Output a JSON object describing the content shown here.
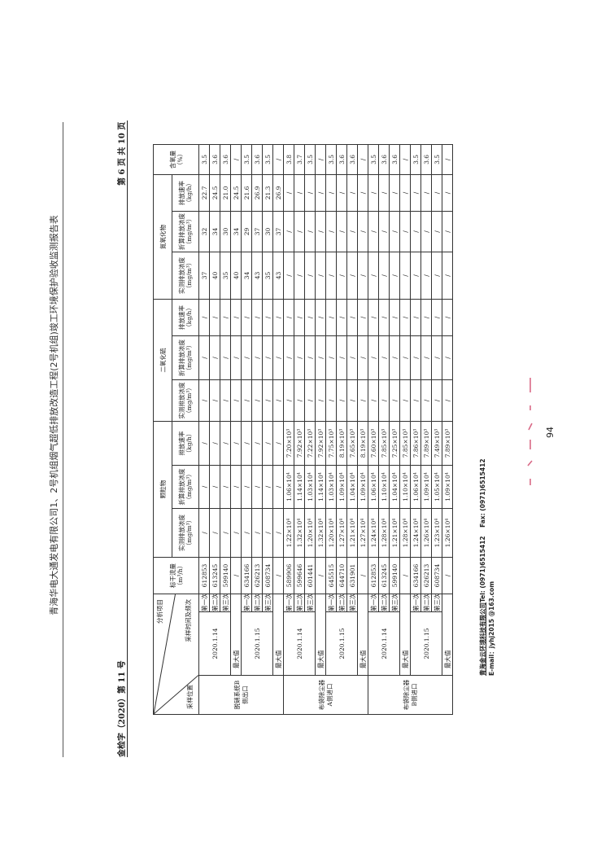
{
  "header": {
    "title": "青海华电大通发电有限公司1、2号机组烟气超低排放改造工程(2号机组)竣工环境保护验收监测报告表",
    "doc_number": "金检字（2020）第 11 号",
    "page_info": "第 6 页 共 10 页"
  },
  "table": {
    "diagonal": {
      "top": "分析项目",
      "mid": "采样时间及频次",
      "bottom": "采样位置"
    },
    "flow_header": "标干流量（m³/h）",
    "o2_header": "含氧量（%）",
    "groups": [
      "颗粒物",
      "二氧化硫",
      "氮氧化物"
    ],
    "sub_headers": [
      "实测排放浓度（mg/m³）",
      "折算排放浓度（mg/m³）",
      "排放速率（kg/h）"
    ],
    "locations": [
      {
        "name": "脱硝系统B侧出口",
        "groups": [
          {
            "date": "2020.1.14",
            "rows": [
              {
                "freq": "第一次",
                "values": [
                  "612853",
                  "/",
                  "/",
                  "/",
                  "/",
                  "/",
                  "/",
                  "37",
                  "32",
                  "22.7",
                  "3.5"
                ]
              },
              {
                "freq": "第二次",
                "values": [
                  "613245",
                  "/",
                  "/",
                  "/",
                  "/",
                  "/",
                  "/",
                  "40",
                  "34",
                  "24.5",
                  "3.6"
                ]
              },
              {
                "freq": "第三次",
                "values": [
                  "599140",
                  "/",
                  "/",
                  "/",
                  "/",
                  "/",
                  "/",
                  "35",
                  "30",
                  "21.0",
                  "3.6"
                ]
              }
            ],
            "max": {
              "label": "最大值",
              "values": [
                "/",
                "/",
                "/",
                "/",
                "/",
                "/",
                "/",
                "40",
                "34",
                "24.5",
                "/"
              ]
            }
          },
          {
            "date": "2020.1.15",
            "rows": [
              {
                "freq": "第一次",
                "values": [
                  "634166",
                  "/",
                  "/",
                  "/",
                  "/",
                  "/",
                  "/",
                  "34",
                  "29",
                  "21.6",
                  "3.5"
                ]
              },
              {
                "freq": "第二次",
                "values": [
                  "626213",
                  "/",
                  "/",
                  "/",
                  "/",
                  "/",
                  "/",
                  "43",
                  "37",
                  "26.9",
                  "3.6"
                ]
              },
              {
                "freq": "第三次",
                "values": [
                  "608734",
                  "/",
                  "/",
                  "/",
                  "/",
                  "/",
                  "/",
                  "35",
                  "30",
                  "21.3",
                  "3.5"
                ]
              }
            ],
            "max": {
              "label": "最大值",
              "values": [
                "/",
                "/",
                "/",
                "/",
                "/",
                "/",
                "/",
                "43",
                "37",
                "26.9",
                "/"
              ]
            }
          }
        ]
      },
      {
        "name": "布袋除尘器A侧进口",
        "groups": [
          {
            "date": "2020.1.14",
            "rows": [
              {
                "freq": "第一次",
                "values": [
                  "589906",
                  "1.22×10⁴",
                  "1.06×10⁴",
                  "7.20×10³",
                  "/",
                  "/",
                  "/",
                  "/",
                  "/",
                  "/",
                  "3.8"
                ]
              },
              {
                "freq": "第二次",
                "values": [
                  "599646",
                  "1.32×10⁴",
                  "1.14×10⁴",
                  "7.92×10³",
                  "/",
                  "/",
                  "/",
                  "/",
                  "/",
                  "/",
                  "3.7"
                ]
              },
              {
                "freq": "第三次",
                "values": [
                  "601441",
                  "1.20×10⁴",
                  "1.03×10⁴",
                  "7.22×10³",
                  "/",
                  "/",
                  "/",
                  "/",
                  "/",
                  "/",
                  "3.5"
                ]
              }
            ],
            "max": {
              "label": "最大值",
              "values": [
                "/",
                "1.32×10⁴",
                "1.14×10⁴",
                "7.92×10³",
                "/",
                "/",
                "/",
                "/",
                "/",
                "/",
                "/"
              ]
            }
          },
          {
            "date": "2020.1.15",
            "rows": [
              {
                "freq": "第一次",
                "values": [
                  "645515",
                  "1.20×10⁴",
                  "1.03×10⁴",
                  "7.75×10³",
                  "/",
                  "/",
                  "/",
                  "/",
                  "/",
                  "/",
                  "3.5"
                ]
              },
              {
                "freq": "第二次",
                "values": [
                  "644710",
                  "1.27×10⁴",
                  "1.09×10⁴",
                  "8.19×10³",
                  "/",
                  "/",
                  "/",
                  "/",
                  "/",
                  "/",
                  "3.6"
                ]
              },
              {
                "freq": "第三次",
                "values": [
                  "631901",
                  "1.21×10⁴",
                  "1.04×10⁴",
                  "7.65×10³",
                  "/",
                  "/",
                  "/",
                  "/",
                  "/",
                  "/",
                  "3.6"
                ]
              }
            ],
            "max": {
              "label": "最大值",
              "values": [
                "/",
                "1.27×10⁴",
                "1.09×10⁴",
                "8.19×10³",
                "/",
                "/",
                "/",
                "/",
                "/",
                "/",
                "/"
              ]
            }
          }
        ]
      },
      {
        "name": "布袋除尘器B侧进口",
        "groups": [
          {
            "date": "2020.1.14",
            "rows": [
              {
                "freq": "第一次",
                "values": [
                  "612853",
                  "1.24×10⁴",
                  "1.06×10⁴",
                  "7.60×10³",
                  "/",
                  "/",
                  "/",
                  "/",
                  "/",
                  "/",
                  "3.5"
                ]
              },
              {
                "freq": "第二次",
                "values": [
                  "613245",
                  "1.28×10⁴",
                  "1.10×10⁴",
                  "7.85×10³",
                  "/",
                  "/",
                  "/",
                  "/",
                  "/",
                  "/",
                  "3.6"
                ]
              },
              {
                "freq": "第三次",
                "values": [
                  "599140",
                  "1.21×10⁴",
                  "1.04×10⁴",
                  "7.25×10³",
                  "/",
                  "/",
                  "/",
                  "/",
                  "/",
                  "/",
                  "3.6"
                ]
              }
            ],
            "max": {
              "label": "最大值",
              "values": [
                "/",
                "1.28×10⁴",
                "1.10×10⁴",
                "7.85×10³",
                "/",
                "/",
                "/",
                "/",
                "/",
                "/",
                "/"
              ]
            }
          },
          {
            "date": "2020.1.15",
            "rows": [
              {
                "freq": "第一次",
                "values": [
                  "634166",
                  "1.24×10⁴",
                  "1.06×10⁴",
                  "7.86×10³",
                  "/",
                  "/",
                  "/",
                  "/",
                  "/",
                  "/",
                  "3.5"
                ]
              },
              {
                "freq": "第二次",
                "values": [
                  "626213",
                  "1.26×10⁴",
                  "1.09×10⁴",
                  "7.89×10³",
                  "/",
                  "/",
                  "/",
                  "/",
                  "/",
                  "/",
                  "3.6"
                ]
              },
              {
                "freq": "第三次",
                "values": [
                  "608734",
                  "1.23×10⁴",
                  "1.05×10⁴",
                  "7.49×10³",
                  "/",
                  "/",
                  "/",
                  "/",
                  "/",
                  "/",
                  "3.5"
                ]
              }
            ],
            "max": {
              "label": "最大值",
              "values": [
                "/",
                "1.26×10⁴",
                "1.09×10⁴",
                "7.89×10³",
                "/",
                "/",
                "/",
                "/",
                "/",
                "/",
                "/"
              ]
            }
          }
        ]
      }
    ]
  },
  "footer": {
    "company": "青海金云环境科技有限公司",
    "tel": "Tel:   (0971)6515412",
    "fax": "Fax:   (0971)6515412",
    "email": "E-mail：jyhj2015 @163.com"
  },
  "page_number": "94",
  "colors": {
    "stamp": "#d0456a",
    "text": "#222222"
  }
}
